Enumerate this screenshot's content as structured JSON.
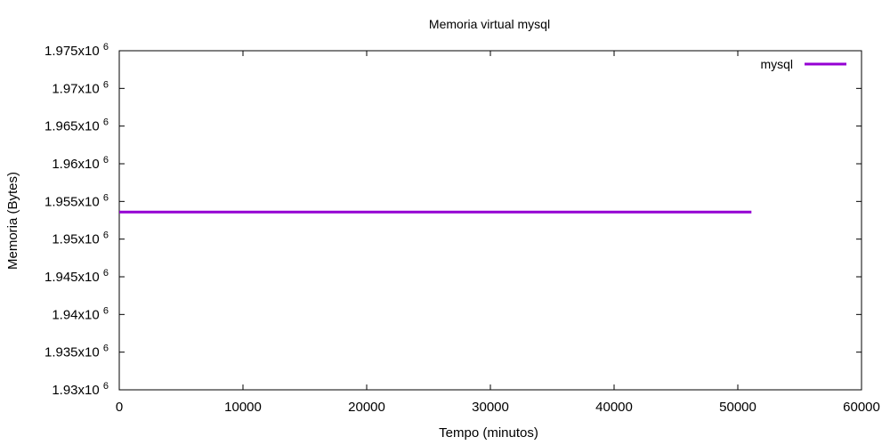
{
  "chart_data": {
    "type": "line",
    "title": "Memoria virtual mysql",
    "xlabel": "Tempo (minutos)",
    "ylabel": "Memoria (Bytes)",
    "xlim": [
      0,
      60000
    ],
    "ylim": [
      1930000,
      1975000
    ],
    "x_ticks": [
      0,
      10000,
      20000,
      30000,
      40000,
      50000,
      60000
    ],
    "x_tick_labels": [
      "0",
      "10000",
      "20000",
      "30000",
      "40000",
      "50000",
      "60000"
    ],
    "y_ticks": [
      1930000,
      1935000,
      1940000,
      1945000,
      1950000,
      1955000,
      1960000,
      1965000,
      1970000,
      1975000
    ],
    "y_tick_labels": [
      {
        "mantissa": "1.93x10",
        "exp": "6"
      },
      {
        "mantissa": "1.935x10",
        "exp": "6"
      },
      {
        "mantissa": "1.94x10",
        "exp": "6"
      },
      {
        "mantissa": "1.945x10",
        "exp": "6"
      },
      {
        "mantissa": "1.95x10",
        "exp": "6"
      },
      {
        "mantissa": "1.955x10",
        "exp": "6"
      },
      {
        "mantissa": "1.96x10",
        "exp": "6"
      },
      {
        "mantissa": "1.965x10",
        "exp": "6"
      },
      {
        "mantissa": "1.97x10",
        "exp": "6"
      },
      {
        "mantissa": "1.975x10",
        "exp": "6"
      }
    ],
    "grid": false,
    "legend_position": "top-right",
    "series": [
      {
        "name": "mysql",
        "color": "#9400d3",
        "x": [
          0,
          51100
        ],
        "y": [
          1953600,
          1953600
        ]
      }
    ]
  }
}
